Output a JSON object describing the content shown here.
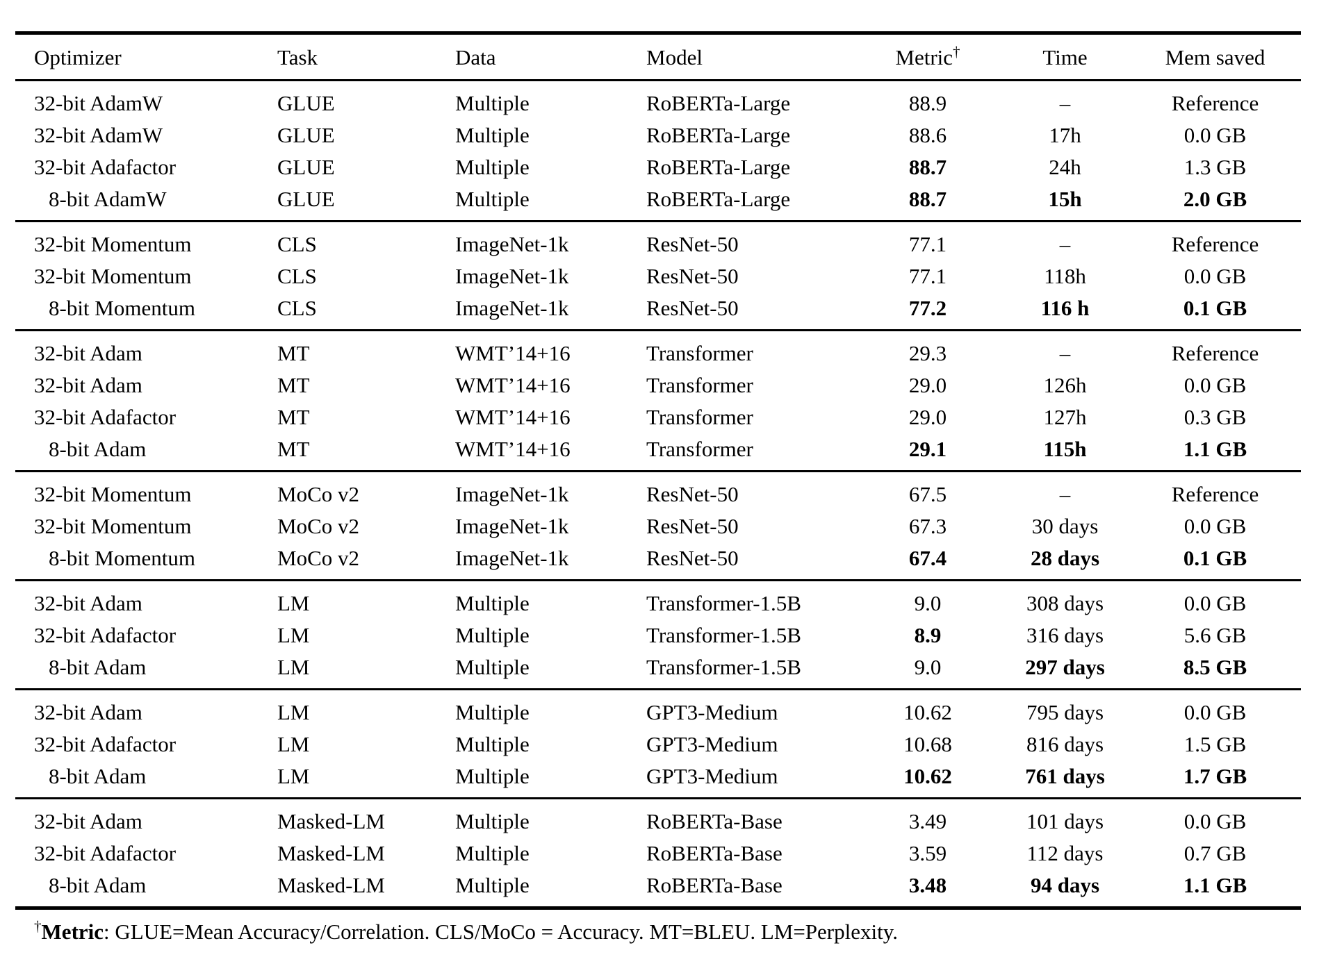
{
  "page": {
    "background": "#ffffff",
    "text_color": "#000000"
  },
  "table": {
    "headers": {
      "optimizer": "Optimizer",
      "task": "Task",
      "data": "Data",
      "model": "Model",
      "metric": "Metric",
      "metric_dagger": "†",
      "time": "Time",
      "mem": "Mem saved"
    },
    "sections": [
      {
        "rows": [
          {
            "optimizer": "32-bit AdamW",
            "indent": false,
            "task": "GLUE",
            "data": "Multiple",
            "model": "RoBERTa-Large",
            "metric": {
              "text": "88.9",
              "bold": false
            },
            "time": {
              "text": "–",
              "bold": false
            },
            "mem": {
              "text": "Reference",
              "bold": false
            }
          },
          {
            "optimizer": "32-bit AdamW",
            "indent": false,
            "task": "GLUE",
            "data": "Multiple",
            "model": "RoBERTa-Large",
            "metric": {
              "text": "88.6",
              "bold": false
            },
            "time": {
              "text": "17h",
              "bold": false
            },
            "mem": {
              "text": "0.0 GB",
              "bold": false
            }
          },
          {
            "optimizer": "32-bit Adafactor",
            "indent": false,
            "task": "GLUE",
            "data": "Multiple",
            "model": "RoBERTa-Large",
            "metric": {
              "text": "88.7",
              "bold": true
            },
            "time": {
              "text": "24h",
              "bold": false
            },
            "mem": {
              "text": "1.3 GB",
              "bold": false
            }
          },
          {
            "optimizer": "8-bit AdamW",
            "indent": true,
            "task": "GLUE",
            "data": "Multiple",
            "model": "RoBERTa-Large",
            "metric": {
              "text": "88.7",
              "bold": true
            },
            "time": {
              "text": "15h",
              "bold": true
            },
            "mem": {
              "text": "2.0 GB",
              "bold": true
            }
          }
        ]
      },
      {
        "rows": [
          {
            "optimizer": "32-bit Momentum",
            "indent": false,
            "task": "CLS",
            "data": "ImageNet-1k",
            "model": "ResNet-50",
            "metric": {
              "text": "77.1",
              "bold": false
            },
            "time": {
              "text": "–",
              "bold": false
            },
            "mem": {
              "text": "Reference",
              "bold": false
            }
          },
          {
            "optimizer": "32-bit Momentum",
            "indent": false,
            "task": "CLS",
            "data": "ImageNet-1k",
            "model": "ResNet-50",
            "metric": {
              "text": "77.1",
              "bold": false
            },
            "time": {
              "text": "118h",
              "bold": false
            },
            "mem": {
              "text": "0.0 GB",
              "bold": false
            }
          },
          {
            "optimizer": "8-bit Momentum",
            "indent": true,
            "task": "CLS",
            "data": "ImageNet-1k",
            "model": "ResNet-50",
            "metric": {
              "text": "77.2",
              "bold": true
            },
            "time": {
              "text": "116 h",
              "bold": true
            },
            "mem": {
              "text": "0.1 GB",
              "bold": true
            }
          }
        ]
      },
      {
        "rows": [
          {
            "optimizer": "32-bit Adam",
            "indent": false,
            "task": "MT",
            "data": "WMT’14+16",
            "model": "Transformer",
            "metric": {
              "text": "29.3",
              "bold": false
            },
            "time": {
              "text": "–",
              "bold": false
            },
            "mem": {
              "text": "Reference",
              "bold": false
            }
          },
          {
            "optimizer": "32-bit Adam",
            "indent": false,
            "task": "MT",
            "data": "WMT’14+16",
            "model": "Transformer",
            "metric": {
              "text": "29.0",
              "bold": false
            },
            "time": {
              "text": "126h",
              "bold": false
            },
            "mem": {
              "text": "0.0 GB",
              "bold": false
            }
          },
          {
            "optimizer": "32-bit Adafactor",
            "indent": false,
            "task": "MT",
            "data": "WMT’14+16",
            "model": "Transformer",
            "metric": {
              "text": "29.0",
              "bold": false
            },
            "time": {
              "text": "127h",
              "bold": false
            },
            "mem": {
              "text": "0.3 GB",
              "bold": false
            }
          },
          {
            "optimizer": "8-bit Adam",
            "indent": true,
            "task": "MT",
            "data": "WMT’14+16",
            "model": "Transformer",
            "metric": {
              "text": "29.1",
              "bold": true
            },
            "time": {
              "text": "115h",
              "bold": true
            },
            "mem": {
              "text": "1.1 GB",
              "bold": true
            }
          }
        ]
      },
      {
        "rows": [
          {
            "optimizer": "32-bit Momentum",
            "indent": false,
            "task": "MoCo v2",
            "data": "ImageNet-1k",
            "model": "ResNet-50",
            "metric": {
              "text": "67.5",
              "bold": false
            },
            "time": {
              "text": "–",
              "bold": false
            },
            "mem": {
              "text": "Reference",
              "bold": false
            }
          },
          {
            "optimizer": "32-bit Momentum",
            "indent": false,
            "task": "MoCo v2",
            "data": "ImageNet-1k",
            "model": "ResNet-50",
            "metric": {
              "text": "67.3",
              "bold": false
            },
            "time": {
              "text": "30 days",
              "bold": false
            },
            "mem": {
              "text": "0.0 GB",
              "bold": false
            }
          },
          {
            "optimizer": "8-bit Momentum",
            "indent": true,
            "task": "MoCo v2",
            "data": "ImageNet-1k",
            "model": "ResNet-50",
            "metric": {
              "text": "67.4",
              "bold": true
            },
            "time": {
              "text": "28 days",
              "bold": true
            },
            "mem": {
              "text": "0.1 GB",
              "bold": true
            }
          }
        ]
      },
      {
        "rows": [
          {
            "optimizer": "32-bit Adam",
            "indent": false,
            "task": "LM",
            "data": "Multiple",
            "model": "Transformer-1.5B",
            "metric": {
              "text": "9.0",
              "bold": false
            },
            "time": {
              "text": "308 days",
              "bold": false
            },
            "mem": {
              "text": "0.0 GB",
              "bold": false
            }
          },
          {
            "optimizer": "32-bit Adafactor",
            "indent": false,
            "task": "LM",
            "data": "Multiple",
            "model": "Transformer-1.5B",
            "metric": {
              "text": "8.9",
              "bold": true
            },
            "time": {
              "text": "316 days",
              "bold": false
            },
            "mem": {
              "text": "5.6 GB",
              "bold": false
            }
          },
          {
            "optimizer": "8-bit Adam",
            "indent": true,
            "task": "LM",
            "data": "Multiple",
            "model": "Transformer-1.5B",
            "metric": {
              "text": "9.0",
              "bold": false
            },
            "time": {
              "text": "297 days",
              "bold": true
            },
            "mem": {
              "text": "8.5 GB",
              "bold": true
            }
          }
        ]
      },
      {
        "rows": [
          {
            "optimizer": "32-bit Adam",
            "indent": false,
            "task": "LM",
            "data": "Multiple",
            "model": "GPT3-Medium",
            "metric": {
              "text": "10.62",
              "bold": false
            },
            "time": {
              "text": "795 days",
              "bold": false
            },
            "mem": {
              "text": "0.0 GB",
              "bold": false
            }
          },
          {
            "optimizer": "32-bit Adafactor",
            "indent": false,
            "task": "LM",
            "data": "Multiple",
            "model": "GPT3-Medium",
            "metric": {
              "text": "10.68",
              "bold": false
            },
            "time": {
              "text": "816 days",
              "bold": false
            },
            "mem": {
              "text": "1.5 GB",
              "bold": false
            }
          },
          {
            "optimizer": "8-bit Adam",
            "indent": true,
            "task": "LM",
            "data": "Multiple",
            "model": "GPT3-Medium",
            "metric": {
              "text": "10.62",
              "bold": true
            },
            "time": {
              "text": "761 days",
              "bold": true
            },
            "mem": {
              "text": "1.7 GB",
              "bold": true
            }
          }
        ]
      },
      {
        "rows": [
          {
            "optimizer": "32-bit Adam",
            "indent": false,
            "task": "Masked-LM",
            "data": "Multiple",
            "model": "RoBERTa-Base",
            "metric": {
              "text": "3.49",
              "bold": false
            },
            "time": {
              "text": "101 days",
              "bold": false
            },
            "mem": {
              "text": "0.0 GB",
              "bold": false
            }
          },
          {
            "optimizer": "32-bit Adafactor",
            "indent": false,
            "task": "Masked-LM",
            "data": "Multiple",
            "model": "RoBERTa-Base",
            "metric": {
              "text": "3.59",
              "bold": false
            },
            "time": {
              "text": "112 days",
              "bold": false
            },
            "mem": {
              "text": "0.7 GB",
              "bold": false
            }
          },
          {
            "optimizer": "8-bit Adam",
            "indent": true,
            "task": "Masked-LM",
            "data": "Multiple",
            "model": "RoBERTa-Base",
            "metric": {
              "text": "3.48",
              "bold": true
            },
            "time": {
              "text": "94 days",
              "bold": true
            },
            "mem": {
              "text": "1.1 GB",
              "bold": true
            }
          }
        ]
      }
    ]
  },
  "footnote": {
    "dagger": "†",
    "label": "Metric",
    "text": ": GLUE=Mean Accuracy/Correlation. CLS/MoCo = Accuracy. MT=BLEU. LM=Perplexity."
  }
}
